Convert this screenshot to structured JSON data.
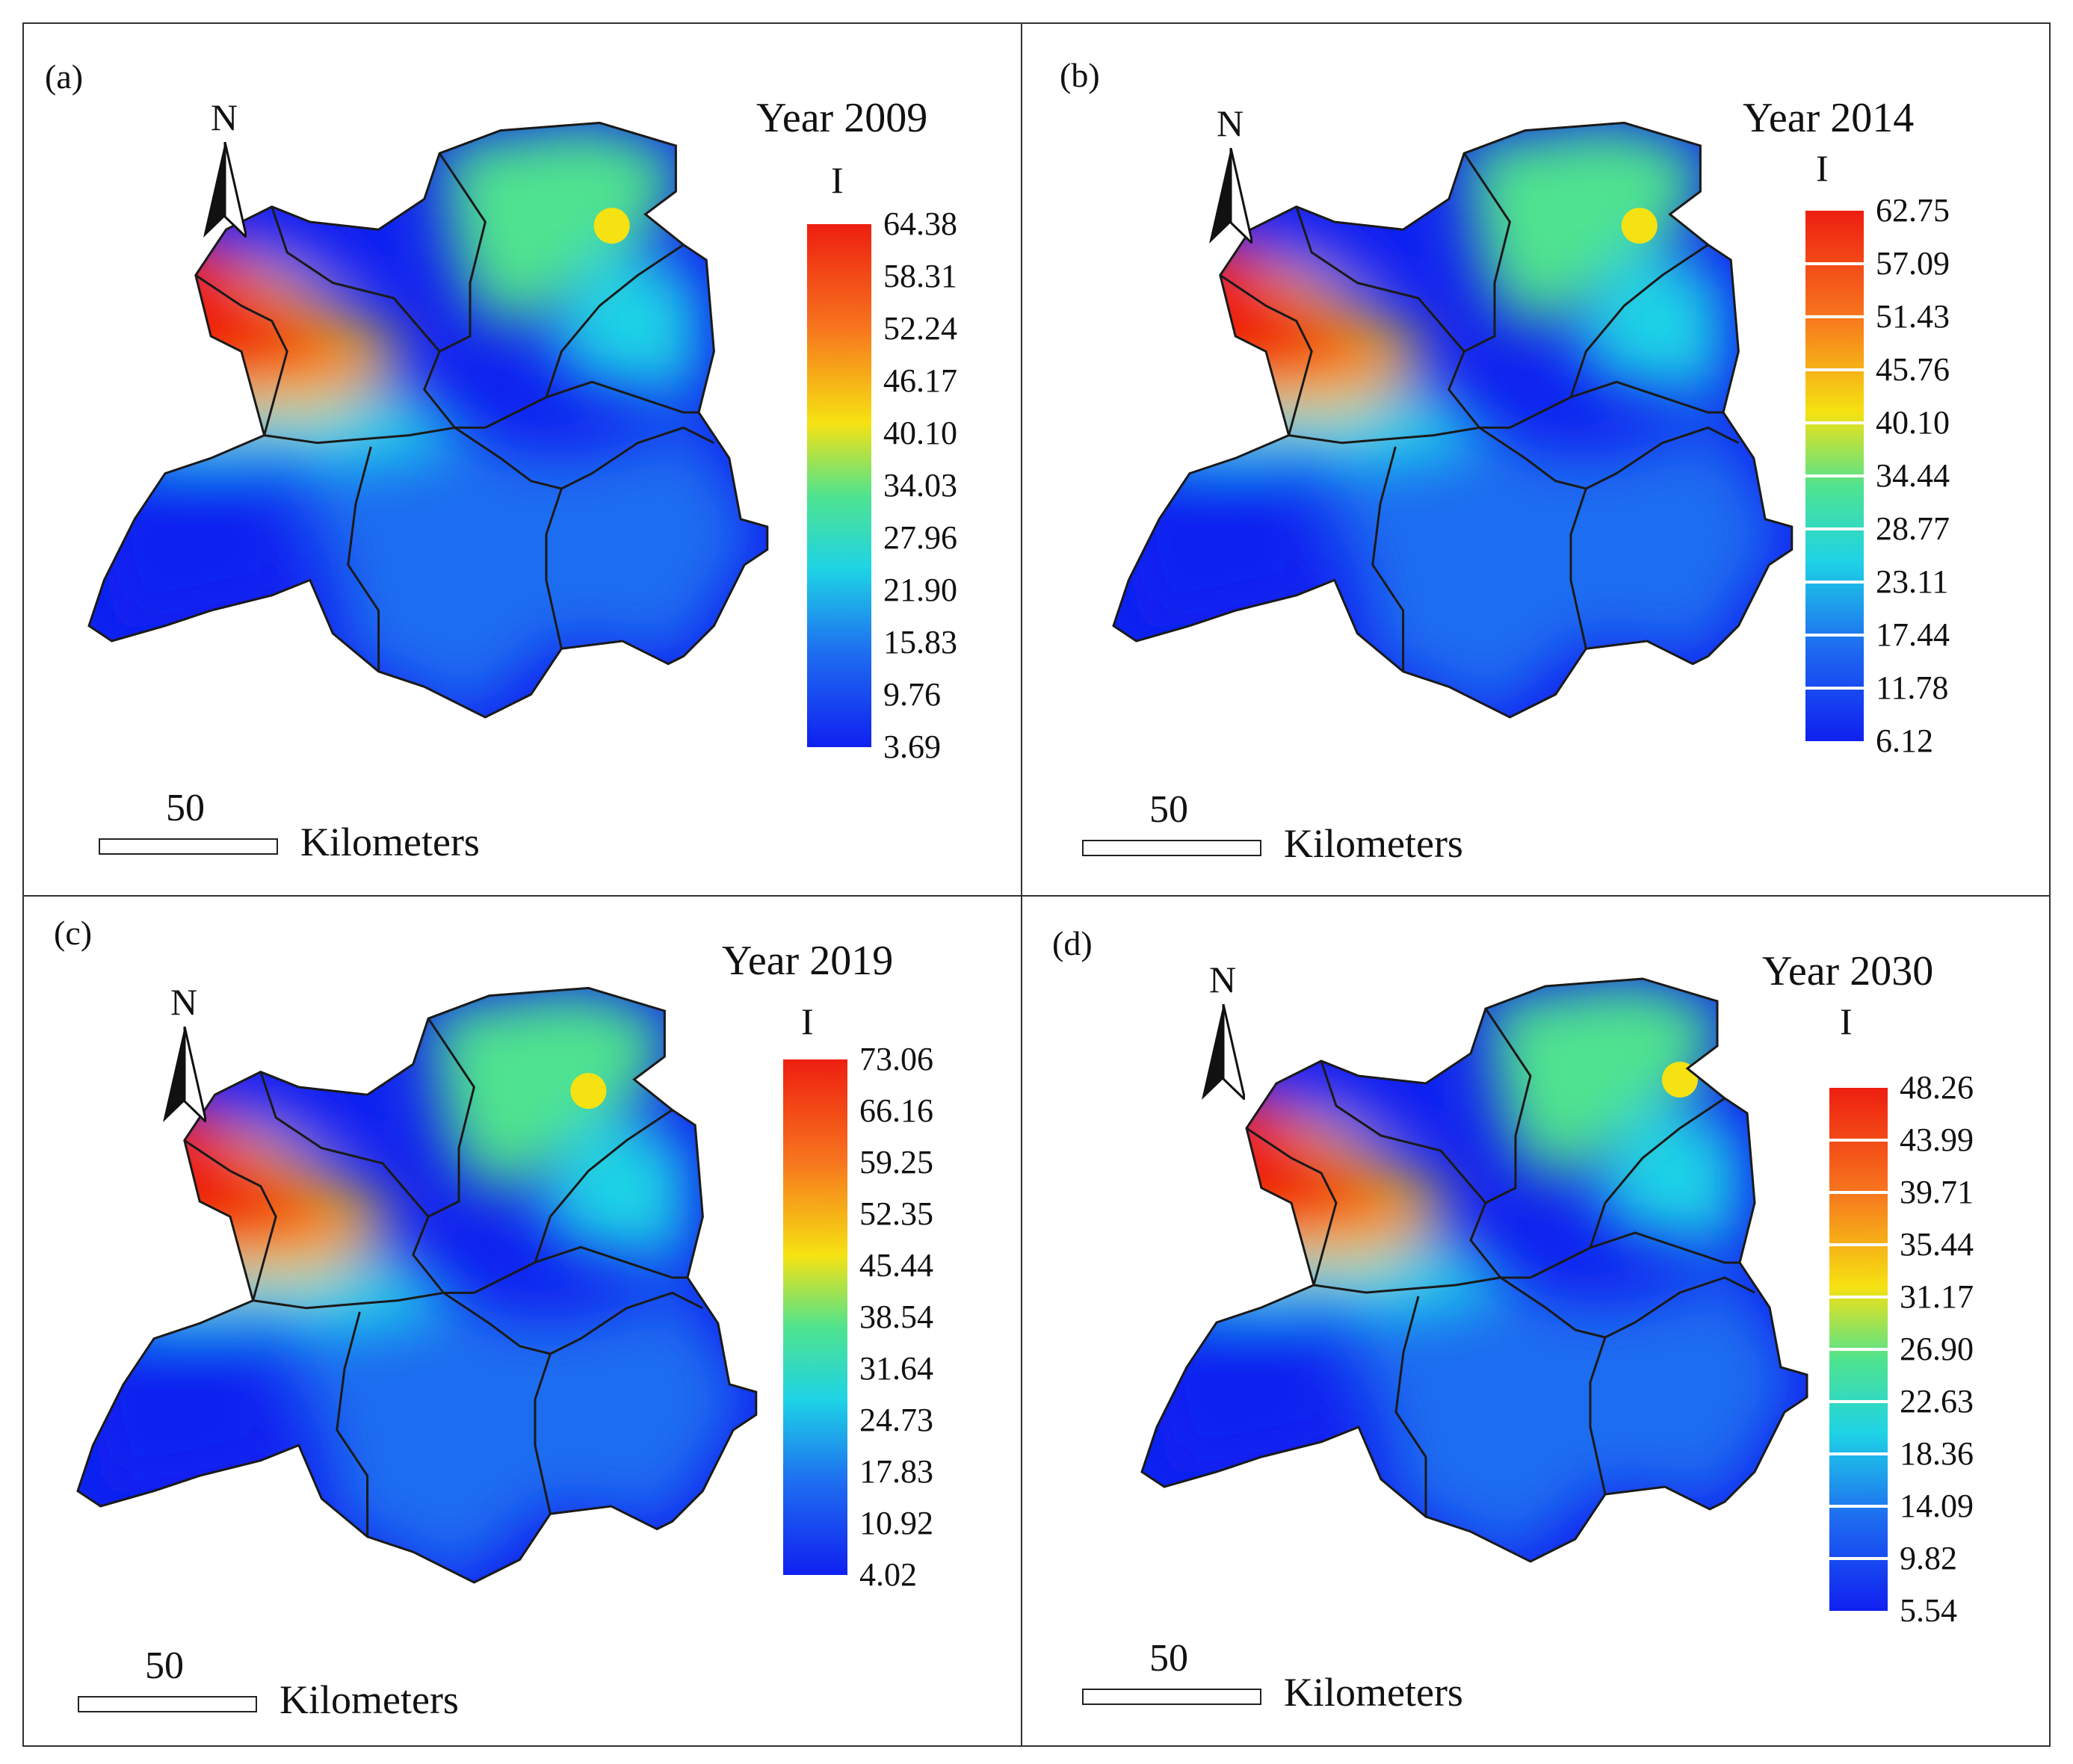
{
  "figure": {
    "panels": [
      {
        "label": "(a)",
        "title": "Year 2009",
        "variable": "I",
        "north_label": "N",
        "scale_value": "50",
        "scale_unit": "Kilometers",
        "legend_style": "continuous",
        "legend_ticks": [
          "64.38",
          "58.31",
          "52.24",
          "46.17",
          "40.10",
          "34.03",
          "27.96",
          "21.90",
          "15.83",
          "9.76",
          "3.69"
        ]
      },
      {
        "label": "(b)",
        "title": "Year 2014",
        "variable": "I",
        "north_label": "N",
        "scale_value": "50",
        "scale_unit": "Kilometers",
        "legend_style": "classified",
        "legend_ticks": [
          "62.75",
          "57.09",
          "51.43",
          "45.76",
          "40.10",
          "34.44",
          "28.77",
          "23.11",
          "17.44",
          "11.78",
          "6.12"
        ]
      },
      {
        "label": "(c)",
        "title": "Year 2019",
        "variable": "I",
        "north_label": "N",
        "scale_value": "50",
        "scale_unit": "Kilometers",
        "legend_style": "continuous",
        "legend_ticks": [
          "73.06",
          "66.16",
          "59.25",
          "52.35",
          "45.44",
          "38.54",
          "31.64",
          "24.73",
          "17.83",
          "10.92",
          "4.02"
        ]
      },
      {
        "label": "(d)",
        "title": "Year 2030",
        "variable": "I",
        "north_label": "N",
        "scale_value": "50",
        "scale_unit": "Kilometers",
        "legend_style": "classified",
        "legend_ticks": [
          "48.26",
          "43.99",
          "39.71",
          "35.44",
          "31.17",
          "26.90",
          "22.63",
          "18.36",
          "14.09",
          "9.82",
          "5.54"
        ]
      }
    ],
    "colors": {
      "ramp_high": "#ee1e10",
      "ramp_orange": "#f7761e",
      "ramp_yellow": "#f6e212",
      "ramp_green": "#4fe38f",
      "ramp_cyan": "#1ed3e6",
      "ramp_blue": "#1e6df0",
      "ramp_low": "#1020f0",
      "boundary": "#1a1a1a",
      "frame": "#333333"
    }
  }
}
